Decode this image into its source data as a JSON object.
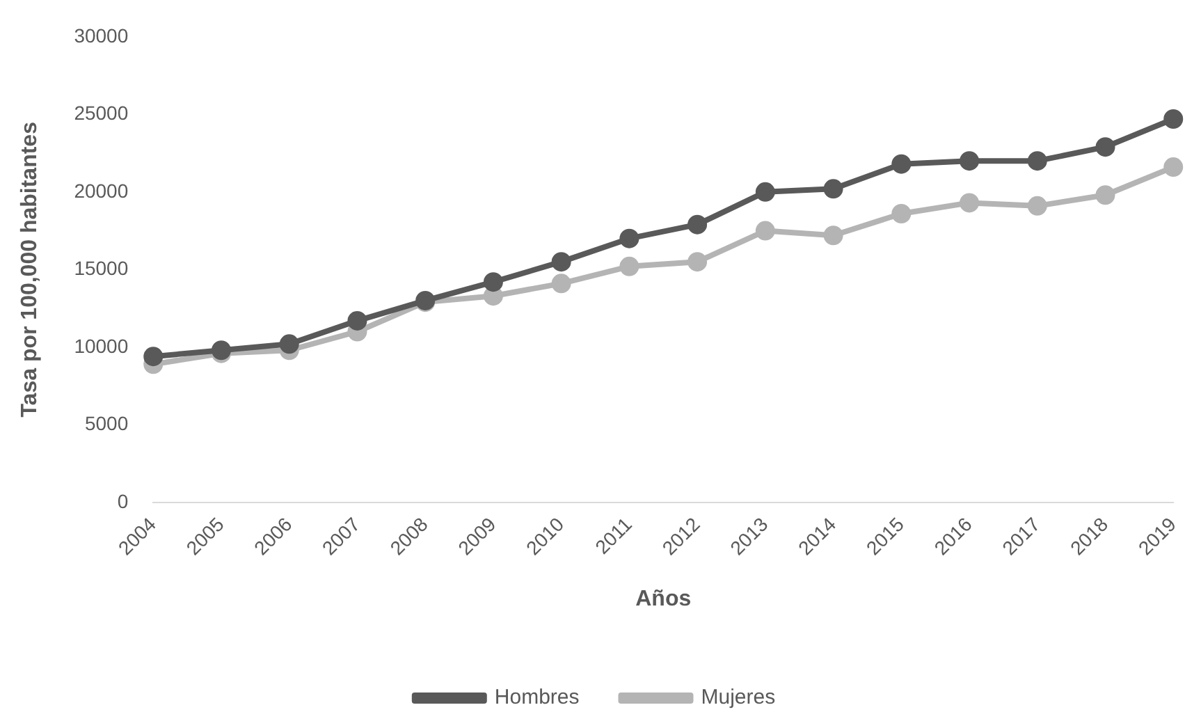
{
  "chart_data": {
    "type": "line",
    "xlabel": "Años",
    "ylabel": "Tasa por 100,000 habitantes",
    "categories": [
      "2004",
      "2005",
      "2006",
      "2007",
      "2008",
      "2009",
      "2010",
      "2011",
      "2012",
      "2013",
      "2014",
      "2015",
      "2016",
      "2017",
      "2018",
      "2019"
    ],
    "series": [
      {
        "name": "Hombres",
        "color": "#595959",
        "values": [
          9400,
          9800,
          10200,
          11700,
          13000,
          14200,
          15500,
          17000,
          17900,
          20000,
          20200,
          21800,
          22000,
          22000,
          22900,
          24700
        ]
      },
      {
        "name": "Mujeres",
        "color": "#b4b4b4",
        "values": [
          8900,
          9600,
          9800,
          11000,
          12900,
          13300,
          14100,
          15200,
          15500,
          17500,
          17200,
          18600,
          19300,
          19100,
          19800,
          21600
        ]
      }
    ],
    "ylim": [
      0,
      30000
    ],
    "yticks": [
      0,
      5000,
      10000,
      15000,
      20000,
      25000,
      30000
    ],
    "grid": false,
    "legend": "bottom",
    "marker": "circle",
    "line_style": "solid"
  }
}
